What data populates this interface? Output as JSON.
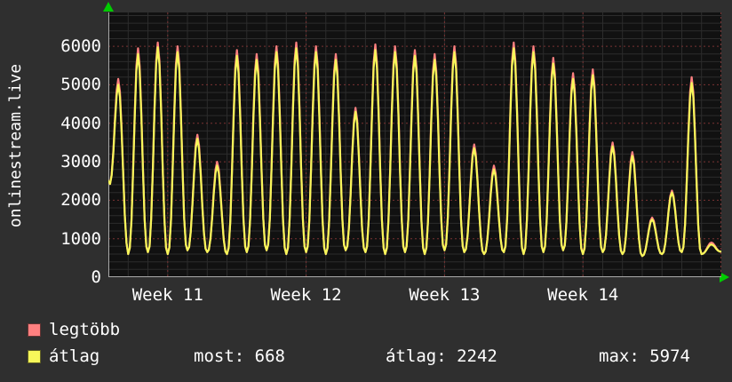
{
  "labels": {
    "y_axis_title": "onlinestream.live"
  },
  "colors": {
    "background": "#2f2f2f",
    "plot_bg": "#111111",
    "text": "#ffffff",
    "axis": "#aaaaaa",
    "grid_major": "#7a3333",
    "grid_minor": "#2c2c2c",
    "arrow": "#00cc00",
    "series_most": "#ff8080",
    "series_avg": "#f7f75a"
  },
  "legend": [
    {
      "label": "legtöbb",
      "color": "#ff8080"
    },
    {
      "label": "átlag",
      "color": "#f7f75a"
    }
  ],
  "stats": [
    {
      "label": "most:",
      "value": "668"
    },
    {
      "label": "átlag:",
      "value": "2242"
    },
    {
      "label": "max:",
      "value": "5974"
    }
  ],
  "chart_data": {
    "type": "line",
    "title": "",
    "ylabel": "onlinestream.live",
    "xlabel": "",
    "x_unit": "day",
    "x_range_days": 31,
    "x_tick_labels": [
      "Week 11",
      "Week 12",
      "Week 13",
      "Week 14"
    ],
    "x_tick_days": [
      3,
      10,
      17,
      24
    ],
    "ylim": [
      0,
      6880
    ],
    "y_ticks": [
      0,
      1000,
      2000,
      3000,
      4000,
      5000,
      6000
    ],
    "grid": true,
    "legend_position": "bottom-left",
    "series": [
      {
        "name": "legtöbb",
        "color": "#ff8080",
        "daily_peaks": [
          5150,
          5950,
          6100,
          6000,
          3700,
          3000,
          5900,
          5800,
          6000,
          6100,
          6000,
          5800,
          4400,
          6050,
          6000,
          5900,
          5800,
          6000,
          3450,
          2900,
          6100,
          6000,
          5700,
          5300,
          5400,
          3500,
          3250,
          1550,
          2250,
          5200,
          900
        ]
      },
      {
        "name": "átlag",
        "color": "#f7f75a",
        "daily_peaks": [
          5000,
          5800,
          5974,
          5850,
          3600,
          2900,
          5750,
          5650,
          5850,
          5950,
          5850,
          5650,
          4300,
          5900,
          5850,
          5750,
          5650,
          5850,
          3350,
          2800,
          5950,
          5850,
          5550,
          5150,
          5250,
          3400,
          3150,
          1500,
          2200,
          5050,
          850
        ]
      }
    ],
    "daily_troughs": [
      2500,
      600,
      650,
      600,
      700,
      650,
      600,
      650,
      700,
      600,
      650,
      600,
      700,
      650,
      600,
      650,
      600,
      700,
      650,
      600,
      650,
      600,
      650,
      700,
      600,
      650,
      600,
      550,
      600,
      650,
      600,
      668
    ],
    "summary": {
      "most_current": 668,
      "atlag_average": 2242,
      "max": 5974
    }
  }
}
